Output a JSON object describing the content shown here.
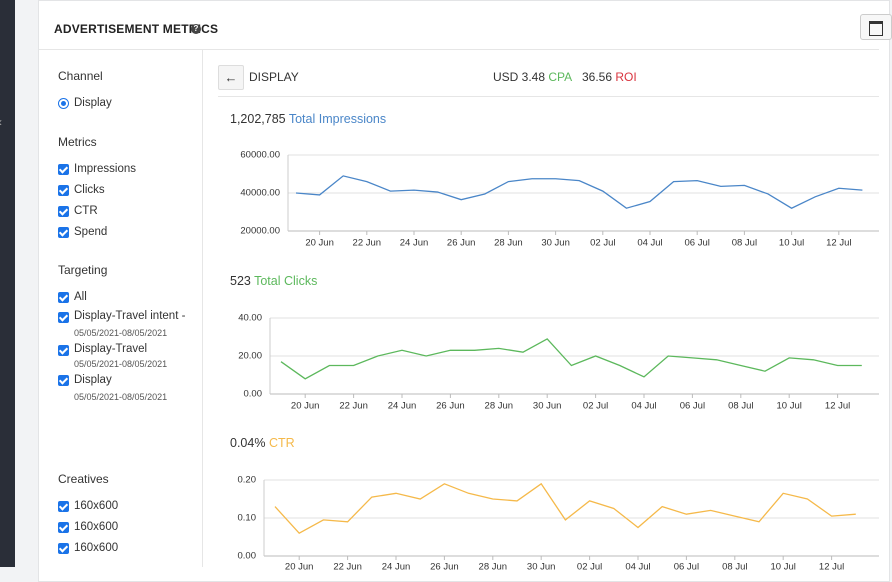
{
  "header": {
    "title": "ADVERTISEMENT METRICS"
  },
  "sidebar": {
    "channel": {
      "title": "Channel",
      "items": [
        "Display"
      ]
    },
    "metrics": {
      "title": "Metrics",
      "items": [
        "Impressions",
        "Clicks",
        "CTR",
        "Spend"
      ]
    },
    "targeting": {
      "title": "Targeting",
      "items": [
        {
          "label": "All"
        },
        {
          "label": "Display-Travel intent -",
          "dates": "05/05/2021-08/05/2021"
        },
        {
          "label": "Display-Travel",
          "dates": "05/05/2021-08/05/2021"
        },
        {
          "label": "Display",
          "dates": "05/05/2021-08/05/2021"
        }
      ]
    },
    "creatives": {
      "title": "Creatives",
      "items": [
        "160x600",
        "160x600",
        "160x600"
      ]
    }
  },
  "summary": {
    "channel": "DISPLAY",
    "cpa_value": "USD 3.48",
    "cpa_label": "CPA",
    "roi_value": "36.56",
    "roi_label": "ROI"
  },
  "chart_data": [
    {
      "type": "line",
      "title_value": "1,202,785",
      "title": "Total Impressions",
      "categories": [
        null,
        "20 Jun",
        null,
        "22 Jun",
        null,
        "24 Jun",
        null,
        "26 Jun",
        null,
        "28 Jun",
        null,
        "30 Jun",
        null,
        "02 Jul",
        null,
        "04 Jul",
        null,
        "06 Jul",
        null,
        "08 Jul",
        null,
        "10 Jul",
        null,
        "12 Jul",
        null
      ],
      "series": [
        {
          "name": "Total Impressions",
          "color": "#4a86c8",
          "values": [
            40000,
            39000,
            49000,
            46000,
            41000,
            41500,
            40500,
            36500,
            39500,
            46000,
            47500,
            47500,
            46500,
            41000,
            32000,
            35500,
            46000,
            46500,
            43500,
            44000,
            39500,
            32000,
            38000,
            42500,
            41500
          ]
        }
      ],
      "ylim": [
        20000,
        60000
      ],
      "yticks": [
        {
          "value": 20000,
          "label": "20000.00"
        },
        {
          "value": 40000,
          "label": "40000.00"
        },
        {
          "value": 60000,
          "label": "60000.00"
        }
      ],
      "grid": true
    },
    {
      "type": "line",
      "title_value": "523",
      "title": "Total Clicks",
      "categories": [
        null,
        "20 Jun",
        null,
        "22 Jun",
        null,
        "24 Jun",
        null,
        "26 Jun",
        null,
        "28 Jun",
        null,
        "30 Jun",
        null,
        "02 Jul",
        null,
        "04 Jul",
        null,
        "06 Jul",
        null,
        "08 Jul",
        null,
        "10 Jul",
        null,
        "12 Jul",
        null
      ],
      "series": [
        {
          "name": "Total Clicks",
          "color": "#5cb85c",
          "values": [
            17,
            8,
            15,
            15,
            20,
            23,
            20,
            23,
            23,
            24,
            22,
            29,
            15,
            20,
            15,
            9,
            20,
            19,
            18,
            15,
            12,
            19,
            18,
            15,
            15
          ]
        }
      ],
      "ylim": [
        0,
        40
      ],
      "yticks": [
        {
          "value": 0,
          "label": "0.00"
        },
        {
          "value": 20,
          "label": "20.00"
        },
        {
          "value": 40,
          "label": "40.00"
        }
      ],
      "grid": true
    },
    {
      "type": "line",
      "title_value": "0.04%",
      "title": "CTR",
      "categories": [
        null,
        "20 Jun",
        null,
        "22 Jun",
        null,
        "24 Jun",
        null,
        "26 Jun",
        null,
        "28 Jun",
        null,
        "30 Jun",
        null,
        "02 Jul",
        null,
        "04 Jul",
        null,
        "06 Jul",
        null,
        "08 Jul",
        null,
        "10 Jul",
        null,
        "12 Jul",
        null
      ],
      "series": [
        {
          "name": "CTR",
          "color": "#f5b94a",
          "values": [
            0.13,
            0.06,
            0.095,
            0.09,
            0.155,
            0.165,
            0.15,
            0.19,
            0.165,
            0.15,
            0.145,
            0.19,
            0.095,
            0.145,
            0.125,
            0.075,
            0.13,
            0.11,
            0.12,
            0.105,
            0.09,
            0.165,
            0.15,
            0.105,
            0.11
          ]
        }
      ],
      "ylim": [
        0,
        0.2
      ],
      "yticks": [
        {
          "value": 0,
          "label": "0.00"
        },
        {
          "value": 0.1,
          "label": "0.10"
        },
        {
          "value": 0.2,
          "label": "0.20"
        }
      ],
      "grid": true
    }
  ]
}
